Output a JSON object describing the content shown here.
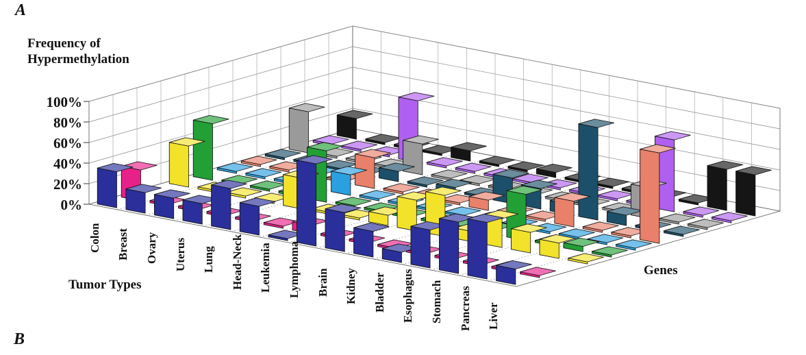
{
  "panel_labels": {
    "top": "A",
    "bottom": "B"
  },
  "chart_data": {
    "type": "bar",
    "projection": "3d",
    "title": "",
    "zlabel_lines": [
      "Frequency of",
      "Hypermethylation"
    ],
    "xlabel": "Tumor Types",
    "ylabel": "Genes",
    "z_ticks": [
      "0%",
      "20%",
      "40%",
      "60%",
      "80%",
      "100%"
    ],
    "zlim": [
      0,
      100
    ],
    "categories": [
      "Colon",
      "Breast",
      "Ovary",
      "Uterus",
      "Lung",
      "Head-Neck",
      "Leukemia",
      "Lymphoma",
      "Brain",
      "Kidney",
      "Bladder",
      "Esophagus",
      "Stomach",
      "Pancreas",
      "Liver"
    ],
    "series": [
      {
        "color": "#2a2f9c",
        "values": [
          35,
          20,
          20,
          20,
          40,
          28,
          2,
          80,
          38,
          25,
          10,
          37,
          50,
          55,
          15
        ]
      },
      {
        "color": "#e8208a",
        "values": [
          30,
          2,
          2,
          2,
          2,
          2,
          8,
          2,
          2,
          2,
          2,
          2,
          2,
          2,
          2
        ]
      },
      {
        "color": "#e8253a",
        "values": [
          0,
          0,
          0,
          0,
          0,
          0,
          0,
          0,
          0,
          0,
          0,
          0,
          0,
          0,
          0
        ]
      },
      {
        "color": "#f2e22a",
        "values": [
          40,
          2,
          2,
          2,
          30,
          2,
          2,
          10,
          30,
          40,
          10,
          28,
          20,
          15,
          2
        ]
      },
      {
        "color": "#22a036",
        "values": [
          55,
          2,
          2,
          2,
          50,
          2,
          2,
          2,
          2,
          2,
          5,
          45,
          2,
          5,
          2
        ]
      },
      {
        "color": "#2aa0e0",
        "values": [
          2,
          2,
          2,
          15,
          20,
          2,
          2,
          2,
          2,
          2,
          2,
          2,
          2,
          2,
          2
        ]
      },
      {
        "color": "#e8806a",
        "values": [
          2,
          2,
          2,
          2,
          30,
          2,
          2,
          2,
          10,
          2,
          2,
          25,
          2,
          2,
          88
        ]
      },
      {
        "color": "#1c4f6a",
        "values": [
          2,
          2,
          2,
          2,
          10,
          2,
          5,
          2,
          25,
          20,
          10,
          90,
          10,
          2,
          2
        ]
      },
      {
        "color": "#9a9a9a",
        "values": [
          40,
          2,
          2,
          2,
          30,
          2,
          2,
          2,
          2,
          2,
          2,
          2,
          30,
          2,
          2
        ]
      },
      {
        "color": "#b060f0",
        "values": [
          2,
          2,
          2,
          60,
          2,
          2,
          2,
          2,
          2,
          2,
          2,
          2,
          70,
          2,
          2
        ]
      },
      {
        "color": "#151515",
        "values": [
          20,
          2,
          2,
          2,
          10,
          2,
          2,
          5,
          2,
          2,
          2,
          2,
          2,
          40,
          40
        ]
      }
    ]
  }
}
